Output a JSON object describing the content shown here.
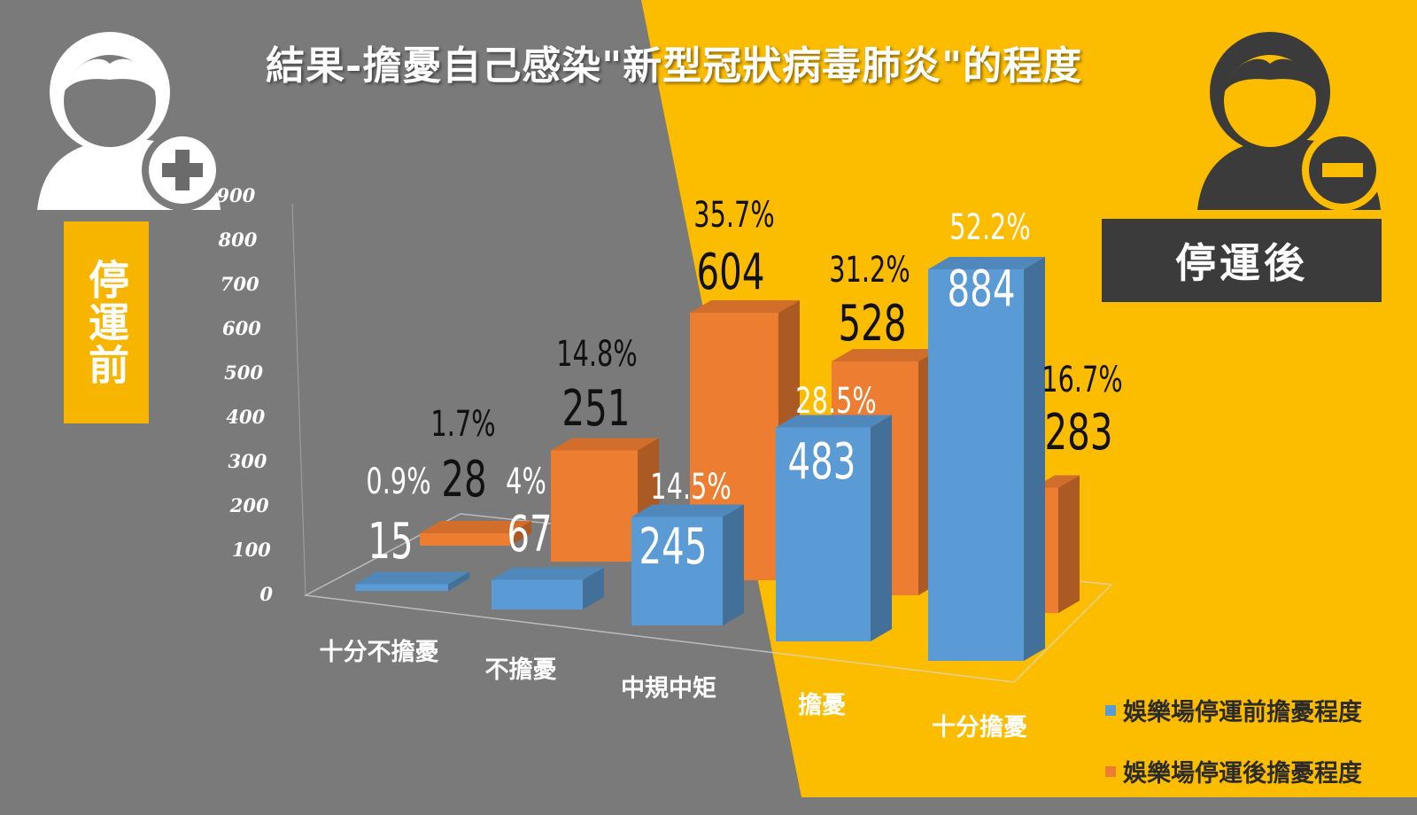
{
  "title": "結果-擔憂自己感染\"新型冠狀病毒肺炎\"的程度",
  "labels": {
    "before": "停運前",
    "after": "停運後"
  },
  "colors": {
    "gray_bg": "#7a7a7a",
    "yellow_bg": "#fcbc00",
    "blue": "#5b9bd5",
    "orange": "#ed7d31",
    "label_yellow": "#f7b500",
    "label_dark": "#3b3b3b"
  },
  "icons": {
    "left": "person-plus-icon",
    "right": "person-minus-icon"
  },
  "chart_data": {
    "type": "bar",
    "categories": [
      "十分不擔憂",
      "不擔憂",
      "中規中矩",
      "擔憂",
      "十分擔憂"
    ],
    "ylim": [
      0,
      900
    ],
    "yticks": [
      0,
      100,
      200,
      300,
      400,
      500,
      600,
      700,
      800,
      900
    ],
    "series": [
      {
        "name": "娛樂場停運前擔憂程度",
        "values": [
          15,
          67,
          245,
          483,
          884
        ],
        "value_labels": [
          "15",
          "67",
          "245",
          "483",
          "884"
        ],
        "percent_labels": [
          "0.9%",
          "4%",
          "14.5%",
          "28.5%",
          "52.2%"
        ]
      },
      {
        "name": "娛樂場停運後擔憂程度",
        "values": [
          28,
          251,
          604,
          528,
          283
        ],
        "value_labels": [
          "28",
          "251",
          "604",
          "528",
          "283"
        ],
        "percent_labels": [
          "1.7%",
          "14.8%",
          "35.7%",
          "31.2%",
          "16.7%"
        ]
      }
    ],
    "legend": "bottom-right"
  }
}
